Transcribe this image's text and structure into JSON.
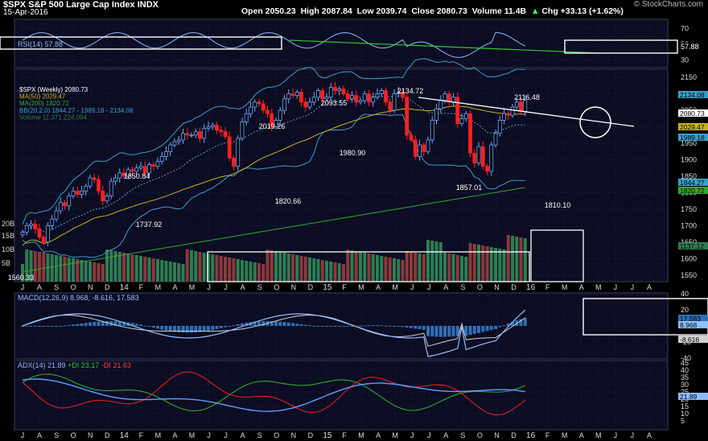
{
  "header": {
    "symbol": "$SPX",
    "name": "S&P 500 Large Cap Index",
    "exchange": "INDX",
    "date": "15-Apr-2016",
    "open": "Open 2050.23",
    "high": "High 2087.84",
    "low": "Low 2039.74",
    "close": "Close 2080.73",
    "volume": "Volume 11.4B",
    "change": "Chg +33.13 (+1.62%)",
    "change_arrow": "▲",
    "brand": "© StockCharts.com"
  },
  "colors": {
    "background": "#000000",
    "panel": "#0c0c22",
    "grid": "#1a2f6e",
    "up_candle": "#6fa8ff",
    "down_candle": "#ff2020",
    "ma50": "#c8b020",
    "ma200": "#2fa82f",
    "bollinger": "#3aa0c8",
    "volume_up": "#2e7d52",
    "volume_down": "#8a3a3a",
    "macd_line": "#8fc0ff",
    "signal_line": "#d0d0d0",
    "histogram": "#2f6fb5",
    "adx": "#5aa0ff",
    "plus_di": "#2fa82f",
    "minus_di": "#e02020",
    "annotation": "#ffffff"
  },
  "panels": {
    "rsi": {
      "legend": "RSI(14) 57.88",
      "y_ticks": [
        "70",
        "50",
        "30"
      ],
      "current": "57.88"
    },
    "price": {
      "legend": [
        {
          "text": "$SPX (Weekly) 2080.73",
          "color": "#ffffff"
        },
        {
          "text": "MA(50) 2029.47",
          "color": "#c8b020"
        },
        {
          "text": "MA(200) 1820.72",
          "color": "#2fa82f"
        },
        {
          "text": "BB(20,2.0) 1844.27 - 1989.18 - 2134.08",
          "color": "#3aa0c8"
        },
        {
          "text": "Volume 11,371,224,064",
          "color": "#2e7d52"
        }
      ],
      "y_ticks": [
        "2150",
        "2100",
        "2050",
        "2000",
        "1950",
        "1900",
        "1850",
        "1800",
        "1750",
        "1700",
        "1650",
        "1600",
        "1550"
      ],
      "right_tags": [
        "2134.08",
        "2080.73",
        "2029.47",
        "1989.18",
        "1844.27",
        "1820.72",
        "1137.12"
      ],
      "vol_ticks": [
        "20B",
        "15B",
        "10B",
        "5B"
      ],
      "annotations": [
        "2134.72",
        "2116.48",
        "2093.55",
        "2019.26",
        "1980.90",
        "1850.84",
        "1857.01",
        "1820.66",
        "1810.10",
        "1737.92",
        "1560.33"
      ]
    },
    "macd": {
      "legend": "MACD(12,26,9) 8.968, -8.616, 17.583",
      "y_ticks": [
        "40",
        "20",
        "0",
        "-20",
        "-40"
      ],
      "right_tags": [
        "17.583",
        "8.968",
        "-8.616"
      ]
    },
    "adx": {
      "legend_adx": "ADX(14) 21.89",
      "legend_plus": "+DI 23.17",
      "legend_minus": "-DI 21.63",
      "y_ticks": [
        "45",
        "40",
        "35",
        "30",
        "25",
        "20",
        "15",
        "10",
        "5"
      ],
      "current": "21.89"
    }
  },
  "x_axis": {
    "labels": [
      "J",
      "A",
      "S",
      "O",
      "N",
      "D",
      "14",
      "F",
      "M",
      "A",
      "M",
      "J",
      "J",
      "A",
      "S",
      "O",
      "N",
      "D",
      "15",
      "F",
      "M",
      "A",
      "M",
      "J",
      "J",
      "A",
      "S",
      "O",
      "N",
      "D",
      "16",
      "F",
      "M",
      "A",
      "M",
      "J",
      "J",
      "A"
    ]
  },
  "chart_data": {
    "type": "candlestick",
    "title": "$SPX S&P 500 Large Cap Index INDX",
    "frequency": "weekly",
    "period": "Jul 2013 - Apr 15 2016",
    "close": [
      1680,
      1700,
      1705,
      1690,
      1665,
      1650,
      1700,
      1720,
      1745,
      1770,
      1760,
      1790,
      1805,
      1795,
      1805,
      1820,
      1845,
      1840,
      1805,
      1775,
      1790,
      1835,
      1845,
      1860,
      1850,
      1870,
      1865,
      1875,
      1880,
      1860,
      1885,
      1880,
      1895,
      1910,
      1925,
      1945,
      1955,
      1960,
      1980,
      1975,
      1975,
      1985,
      1965,
      1995,
      2000,
      2005,
      1990,
      1985,
      1970,
      1905,
      1880,
      1965,
      2015,
      2040,
      2060,
      2075,
      2070,
      2050,
      2040,
      2000,
      2020,
      2050,
      2085,
      2100,
      2095,
      2105,
      2075,
      2060,
      2075,
      2090,
      2110,
      2085,
      2090,
      2120,
      2110,
      2115,
      2100,
      2085,
      2095,
      2075,
      2080,
      2100,
      2075,
      2090,
      2100,
      2110,
      2075,
      2050,
      2100,
      2105,
      2090,
      1975,
      1960,
      1910,
      1945,
      1925,
      1960,
      2020,
      2055,
      2080,
      2100,
      2075,
      2090,
      2010,
      2025,
      2040,
      1920,
      1890,
      1940,
      1880,
      1865,
      1945,
      1980,
      2020,
      2040,
      2035,
      2060,
      2075,
      2047,
      2080
    ],
    "ma50_last": 2029.47,
    "ma200_last": 1820.72,
    "bb_last": {
      "lower": 1844.27,
      "middle": 1989.18,
      "upper": 2134.08
    },
    "volume_last": 11371224064,
    "rsi_last": 57.88,
    "macd_last": {
      "macd": 8.968,
      "signal": -8.616,
      "histogram": 17.583
    },
    "adx_last": {
      "adx": 21.89,
      "plus_di": 23.17,
      "minus_di": 21.63
    },
    "price_ylim": [
      1530,
      2170
    ]
  }
}
